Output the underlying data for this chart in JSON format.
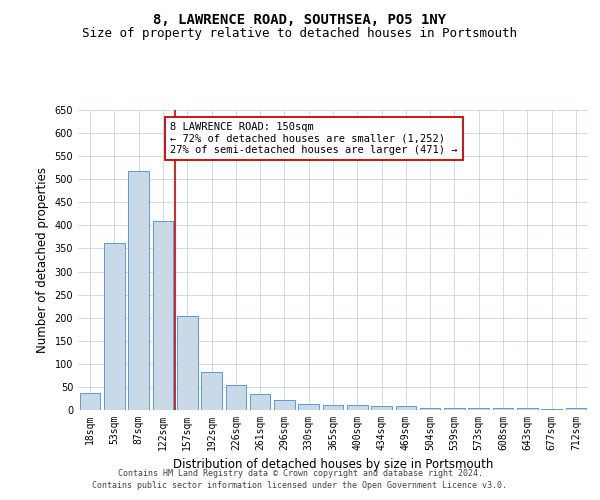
{
  "title": "8, LAWRENCE ROAD, SOUTHSEA, PO5 1NY",
  "subtitle": "Size of property relative to detached houses in Portsmouth",
  "xlabel": "Distribution of detached houses by size in Portsmouth",
  "ylabel": "Number of detached properties",
  "bar_color": "#c9d9e8",
  "bar_edge_color": "#5b9bd5",
  "categories": [
    "18sqm",
    "53sqm",
    "87sqm",
    "122sqm",
    "157sqm",
    "192sqm",
    "226sqm",
    "261sqm",
    "296sqm",
    "330sqm",
    "365sqm",
    "400sqm",
    "434sqm",
    "469sqm",
    "504sqm",
    "539sqm",
    "573sqm",
    "608sqm",
    "643sqm",
    "677sqm",
    "712sqm"
  ],
  "values": [
    37,
    362,
    517,
    410,
    203,
    82,
    55,
    35,
    22,
    12,
    10,
    10,
    9,
    8,
    5,
    5,
    5,
    5,
    5,
    2,
    5
  ],
  "ylim": [
    0,
    650
  ],
  "yticks": [
    0,
    50,
    100,
    150,
    200,
    250,
    300,
    350,
    400,
    450,
    500,
    550,
    600,
    650
  ],
  "vline_x": 3.5,
  "vline_color": "#cc0000",
  "annotation_line1": "8 LAWRENCE ROAD: 150sqm",
  "annotation_line2": "← 72% of detached houses are smaller (1,252)",
  "annotation_line3": "27% of semi-detached houses are larger (471) →",
  "annotation_box_color": "#ffffff",
  "annotation_box_edge": "#cc0000",
  "footnote1": "Contains HM Land Registry data © Crown copyright and database right 2024.",
  "footnote2": "Contains public sector information licensed under the Open Government Licence v3.0.",
  "background_color": "#ffffff",
  "grid_color": "#c8d4e0",
  "title_fontsize": 10,
  "subtitle_fontsize": 9,
  "tick_fontsize": 7,
  "label_fontsize": 8.5,
  "annot_fontsize": 7.5,
  "footnote_fontsize": 6
}
